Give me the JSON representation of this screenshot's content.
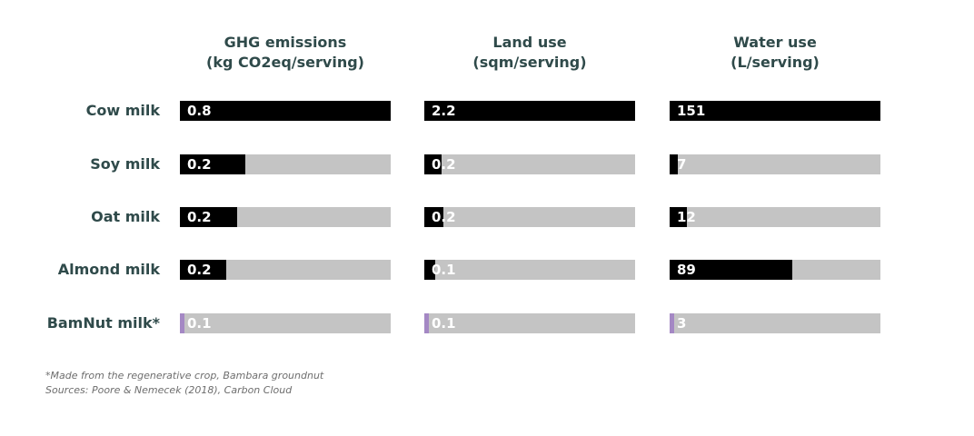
{
  "chart_data": {
    "type": "bar",
    "orientation": "horizontal",
    "categories": [
      "Cow milk",
      "Soy milk",
      "Oat milk",
      "Almond milk",
      "BamNut milk*"
    ],
    "panels": [
      {
        "title_line1": "GHG emissions",
        "title_line2": "(kg CO2eq/serving)",
        "values": [
          0.8,
          0.2,
          0.2,
          0.2,
          0.1
        ],
        "labels": [
          "0.8",
          "0.2",
          "0.2",
          "0.2",
          "0.1"
        ],
        "bar_fraction": [
          1.0,
          0.31,
          0.27,
          0.22,
          0.0
        ]
      },
      {
        "title_line1": "Land use",
        "title_line2": "(sqm/serving)",
        "values": [
          2.2,
          0.2,
          0.2,
          0.1,
          0.1
        ],
        "labels": [
          "2.2",
          "0.2",
          "0.2",
          "0.1",
          "0.1"
        ],
        "bar_fraction": [
          1.0,
          0.08,
          0.09,
          0.05,
          0.0
        ]
      },
      {
        "title_line1": "Water use",
        "title_line2": "(L/serving)",
        "values": [
          151,
          7,
          12,
          89,
          3
        ],
        "labels": [
          "151",
          "7",
          "12",
          "89",
          "3"
        ],
        "bar_fraction": [
          1.0,
          0.04,
          0.08,
          0.58,
          0.0
        ]
      }
    ],
    "highlight_category": "BamNut milk*",
    "colors": {
      "bar": "#000000",
      "track": "#c4c4c4",
      "highlight": "#a488c4",
      "text": "#2f4a4a"
    }
  },
  "footnote": {
    "line1": "*Made from the regenerative crop, Bambara groundnut",
    "line2": "Sources: Poore & Nemecek (2018), Carbon Cloud"
  }
}
